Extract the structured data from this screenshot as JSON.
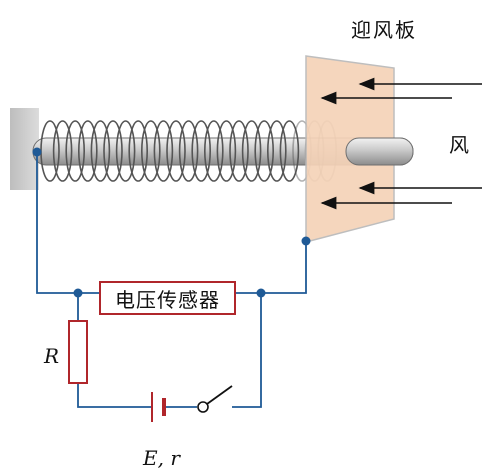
{
  "labels": {
    "board": "迎风板",
    "wind": "风",
    "sensor": "电压传感器",
    "resistor": "R",
    "source": "E, r"
  },
  "colors": {
    "wire": "#1f5a96",
    "resistor_outline": "#b0262b",
    "board_fill": "#f5d3b8",
    "rod": "#b8b8b8",
    "wall": "#c8c8c8"
  }
}
